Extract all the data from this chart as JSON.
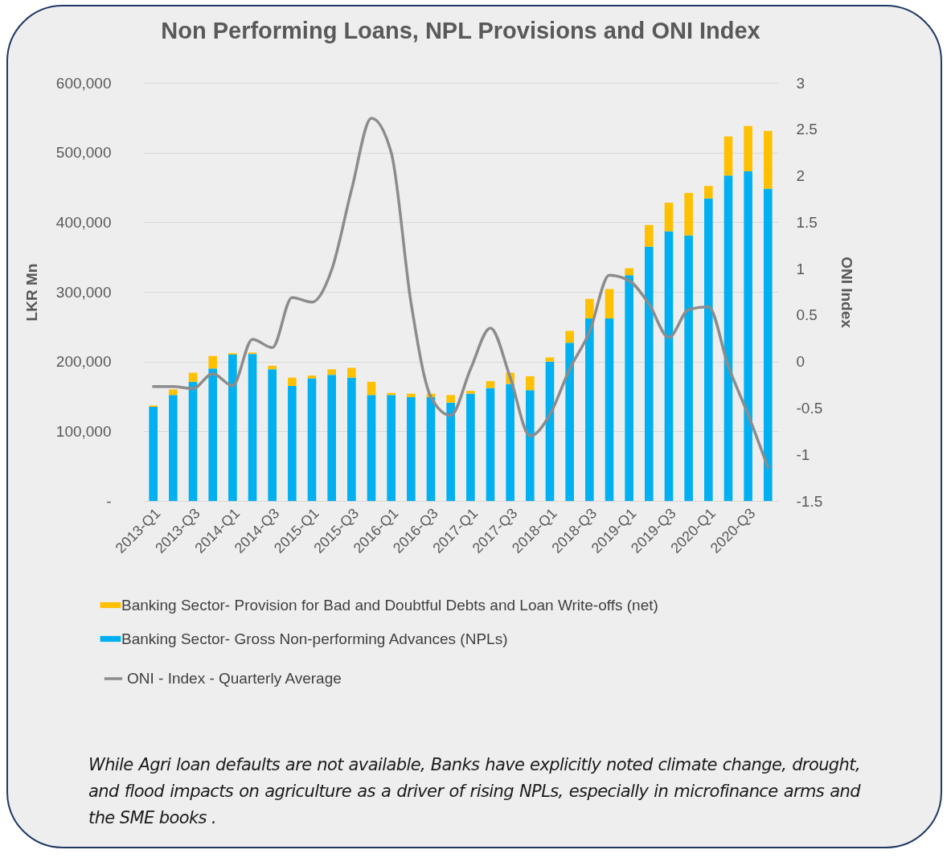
{
  "chart_data": {
    "type": "bar",
    "title": "Non Performing Loans, NPL Provisions and ONI Index",
    "ylabel": "LKR Mn",
    "y2label": "ONI Index",
    "categories": [
      "2013-Q1",
      null,
      "2013-Q3",
      null,
      "2014-Q1",
      null,
      "2014-Q3",
      null,
      "2015-Q1",
      null,
      "2015-Q3",
      null,
      "2016-Q1",
      null,
      "2016-Q3",
      null,
      "2017-Q1",
      null,
      "2017-Q3",
      null,
      "2018-Q1",
      null,
      "2018-Q3",
      null,
      "2019-Q1",
      null,
      "2019-Q3",
      null,
      "2020-Q1",
      null,
      "2020-Q3",
      null
    ],
    "stacked": true,
    "series": [
      {
        "name": "Banking Sector- Gross Non-performing Advances (NPLs)",
        "color": "#00b0f0",
        "values": [
          135000,
          152000,
          171000,
          190000,
          210000,
          211000,
          189000,
          165000,
          176000,
          181000,
          177000,
          152000,
          152000,
          149000,
          149000,
          141000,
          154000,
          162000,
          168000,
          159000,
          200000,
          227000,
          262000,
          262000,
          324000,
          365000,
          387000,
          381000,
          434000,
          467000,
          473000,
          448000
        ]
      },
      {
        "name": "Banking Sector- Provision for Bad and Doubtful Debts and Loan Write-offs (net)",
        "color": "#ffc000",
        "values": [
          2000,
          8000,
          13000,
          18000,
          2000,
          2000,
          5000,
          12000,
          4000,
          8000,
          14000,
          19000,
          3000,
          5000,
          5000,
          11000,
          4000,
          10000,
          16000,
          20000,
          6000,
          17000,
          28000,
          42000,
          10000,
          31000,
          41000,
          61000,
          18000,
          56000,
          65000,
          83000
        ]
      },
      {
        "name": "ONI - Index - Quarterly Average",
        "type": "line",
        "axis": "y2",
        "color": "#8c8c8c",
        "values": [
          -0.27,
          -0.27,
          -0.29,
          -0.13,
          -0.26,
          0.24,
          0.15,
          0.69,
          0.64,
          0.99,
          1.85,
          2.62,
          2.25,
          0.63,
          -0.38,
          -0.58,
          -0.08,
          0.36,
          -0.17,
          -0.8,
          -0.57,
          -0.08,
          0.32,
          0.93,
          0.87,
          0.62,
          0.26,
          0.56,
          0.59,
          -0.05,
          -0.57,
          -1.14
        ]
      }
    ],
    "ylim": [
      0,
      600000
    ],
    "yticks": [
      {
        "value": 0,
        "label": "-"
      },
      {
        "value": 100000,
        "label": "100,000"
      },
      {
        "value": 200000,
        "label": "200,000"
      },
      {
        "value": 300000,
        "label": "300,000"
      },
      {
        "value": 400000,
        "label": "400,000"
      },
      {
        "value": 500000,
        "label": "500,000"
      },
      {
        "value": 600000,
        "label": "600,000"
      }
    ],
    "y2lim": [
      -1.5,
      3
    ],
    "y2ticks": [
      -1.5,
      -1,
      -0.5,
      0,
      0.5,
      1,
      1.5,
      2,
      2.5,
      3
    ],
    "grid": "y",
    "legend": "bottom",
    "marker": "none",
    "line_style": "solid",
    "annotations": [
      "While Agri loan defaults are not available, Banks have explicitly noted climate change, drought, and flood impacts on agriculture as a driver of rising NPLs, especially in microfinance arms and the SME books ."
    ]
  }
}
